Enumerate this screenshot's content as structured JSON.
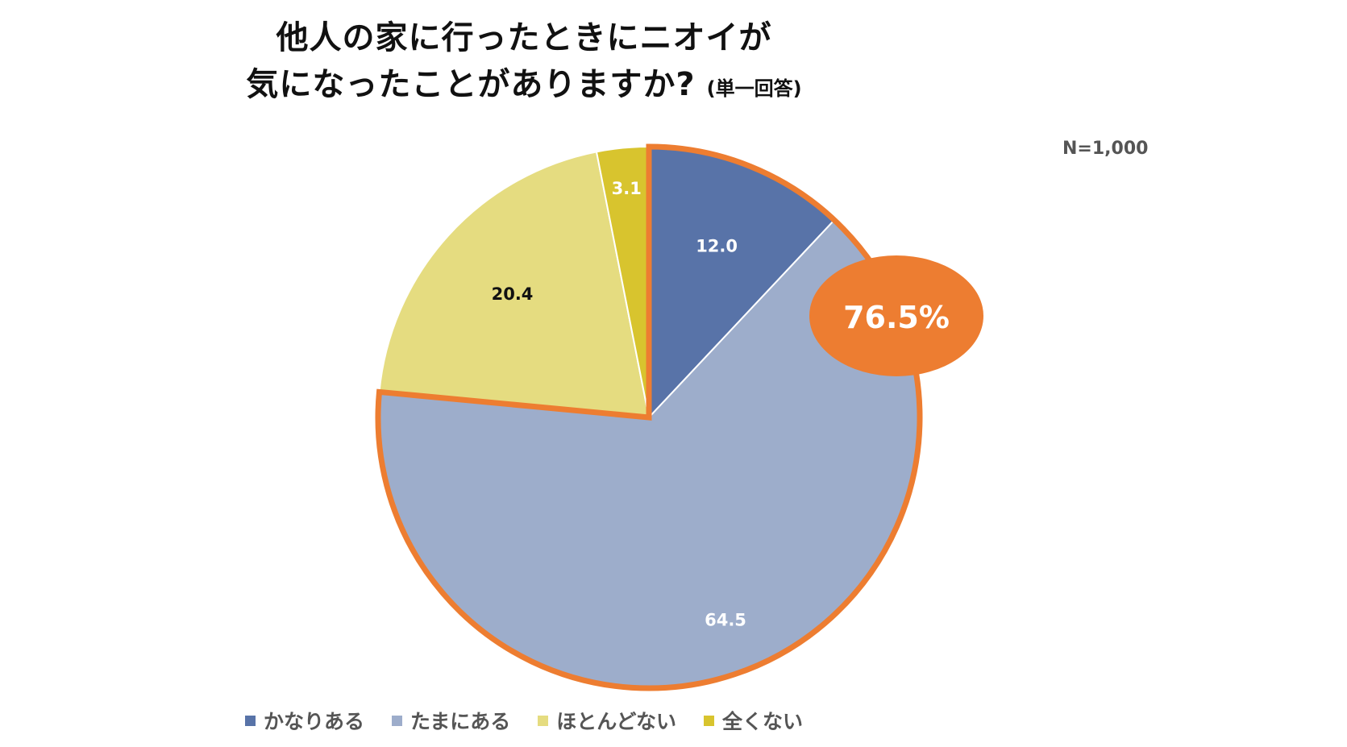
{
  "title": {
    "line1": "他人の家に行ったときにニオイが",
    "line2": "気になったことがありますか?",
    "note": "(単一回答)"
  },
  "sample_size": "N=1,000",
  "highlight": {
    "label": "76.5%",
    "color": "#ED7D31"
  },
  "chart_data": {
    "type": "pie",
    "title": "他人の家に行ったときにニオイが気になったことがありますか?",
    "start_angle": "12 o'clock",
    "direction": "clockwise",
    "legend_position": "bottom",
    "slices": [
      {
        "label": "かなりある",
        "value": 12.0,
        "display": "12.0",
        "color": "#5873A8",
        "label_color": "#ffffff",
        "highlighted": true
      },
      {
        "label": "たまにある",
        "value": 64.5,
        "display": "64.5",
        "color": "#9DADCB",
        "label_color": "#ffffff",
        "highlighted": true
      },
      {
        "label": "ほとんどない",
        "value": 20.4,
        "display": "20.4",
        "color": "#E5DC80",
        "label_color": "#111111",
        "highlighted": false
      },
      {
        "label": "全くない",
        "value": 3.1,
        "display": "3.1",
        "color": "#D8C42E",
        "label_color": "#ffffff",
        "highlighted": false
      }
    ]
  }
}
